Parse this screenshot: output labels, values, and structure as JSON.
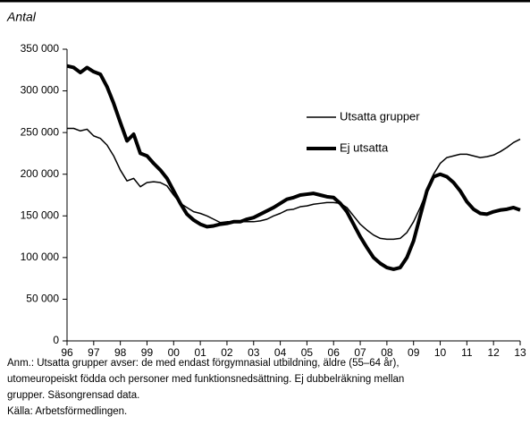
{
  "chart_data": {
    "type": "line",
    "y_label": "Antal",
    "x": [
      1996,
      1996.25,
      1996.5,
      1996.75,
      1997,
      1997.25,
      1997.5,
      1997.75,
      1998,
      1998.25,
      1998.5,
      1998.75,
      1999,
      1999.25,
      1999.5,
      1999.75,
      2000,
      2000.25,
      2000.5,
      2000.75,
      2001,
      2001.25,
      2001.5,
      2001.75,
      2002,
      2002.25,
      2002.5,
      2002.75,
      2003,
      2003.25,
      2003.5,
      2003.75,
      2004,
      2004.25,
      2004.5,
      2004.75,
      2005,
      2005.25,
      2005.5,
      2005.75,
      2006,
      2006.25,
      2006.5,
      2006.75,
      2007,
      2007.25,
      2007.5,
      2007.75,
      2008,
      2008.25,
      2008.5,
      2008.75,
      2009,
      2009.25,
      2009.5,
      2009.75,
      2010,
      2010.25,
      2010.5,
      2010.75,
      2011,
      2011.25,
      2011.5,
      2011.75,
      2012,
      2012.25,
      2012.5,
      2012.75,
      2013
    ],
    "series": [
      {
        "name": "Utsatta grupper",
        "color": "#000000",
        "width": 1.5,
        "values": [
          255000,
          255000,
          252000,
          254000,
          246000,
          243000,
          235000,
          222000,
          205000,
          192000,
          195000,
          185000,
          190000,
          191000,
          190000,
          186000,
          175000,
          165000,
          160000,
          155000,
          153000,
          150000,
          146000,
          142000,
          143000,
          143000,
          143000,
          143000,
          143000,
          144000,
          146000,
          150000,
          153000,
          157000,
          158000,
          161000,
          162000,
          164000,
          165000,
          166000,
          166000,
          165000,
          160000,
          150000,
          140000,
          133000,
          127000,
          123000,
          122000,
          122000,
          123000,
          130000,
          143000,
          160000,
          180000,
          200000,
          213000,
          220000,
          222000,
          224000,
          224000,
          222000,
          220000,
          221000,
          223000,
          227000,
          232000,
          238000,
          242000
        ]
      },
      {
        "name": "Ej utsatta",
        "color": "#000000",
        "width": 4,
        "values": [
          330000,
          328000,
          322000,
          328000,
          323000,
          320000,
          305000,
          285000,
          262000,
          240000,
          248000,
          225000,
          222000,
          213000,
          205000,
          195000,
          180000,
          165000,
          152000,
          145000,
          140000,
          137000,
          138000,
          140000,
          141000,
          143000,
          143000,
          146000,
          148000,
          152000,
          156000,
          160000,
          165000,
          170000,
          172000,
          175000,
          176000,
          177000,
          175000,
          173000,
          172000,
          165000,
          155000,
          140000,
          125000,
          112000,
          100000,
          93000,
          88000,
          86000,
          88000,
          100000,
          120000,
          150000,
          180000,
          197000,
          200000,
          197000,
          190000,
          180000,
          167000,
          158000,
          153000,
          152000,
          155000,
          157000,
          158000,
          160000,
          157000
        ]
      }
    ],
    "xlim": [
      1996,
      2013
    ],
    "xticks": [
      {
        "value": 1996,
        "label": "96"
      },
      {
        "value": 1997,
        "label": "97"
      },
      {
        "value": 1998,
        "label": "98"
      },
      {
        "value": 1999,
        "label": "99"
      },
      {
        "value": 2000,
        "label": "00"
      },
      {
        "value": 2001,
        "label": "01"
      },
      {
        "value": 2002,
        "label": "02"
      },
      {
        "value": 2003,
        "label": "03"
      },
      {
        "value": 2004,
        "label": "04"
      },
      {
        "value": 2005,
        "label": "05"
      },
      {
        "value": 2006,
        "label": "06"
      },
      {
        "value": 2007,
        "label": "07"
      },
      {
        "value": 2008,
        "label": "08"
      },
      {
        "value": 2009,
        "label": "09"
      },
      {
        "value": 2010,
        "label": "10"
      },
      {
        "value": 2011,
        "label": "11"
      },
      {
        "value": 2012,
        "label": "12"
      },
      {
        "value": 2013,
        "label": "13"
      }
    ],
    "ylim": [
      0,
      350000
    ],
    "yticks": [
      0,
      {
        "value": 50000,
        "label": "50 000"
      },
      {
        "value": 100000,
        "label": "100 000"
      },
      {
        "value": 150000,
        "label": "150 000"
      },
      {
        "value": 200000,
        "label": "200 000"
      },
      {
        "value": 250000,
        "label": "250 000"
      },
      {
        "value": 300000,
        "label": "300 000"
      },
      {
        "value": 350000,
        "label": "350 000"
      }
    ],
    "grid": false,
    "legend": "upper right",
    "notes": [
      "Anm.: Utsatta grupper avser: de med endast förgymnasial utbildning, äldre (55–64 år),",
      "utomeuropeiskt födda och personer med funktionsnedsättning. Ej dubbelräkning mellan",
      "grupper. Säsongrensad data.",
      "Källa: Arbetsförmedlingen."
    ]
  }
}
